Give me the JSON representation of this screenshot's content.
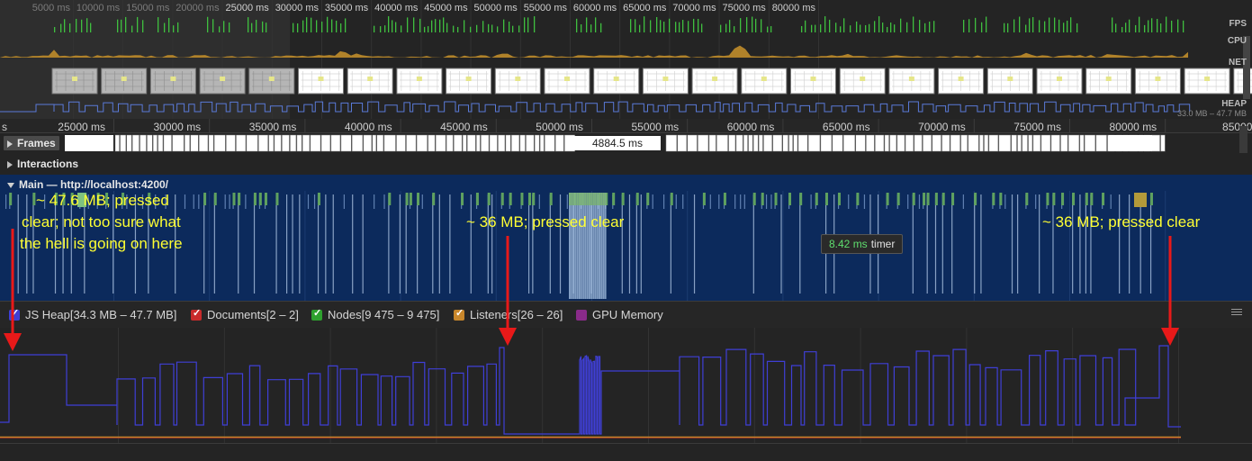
{
  "overview_ticks": [
    "5000 ms",
    "10000 ms",
    "15000 ms",
    "20000 ms",
    "25000 ms",
    "30000 ms",
    "35000 ms",
    "40000 ms",
    "45000 ms",
    "50000 ms",
    "55000 ms",
    "60000 ms",
    "65000 ms",
    "70000 ms",
    "75000 ms",
    "80000 ms"
  ],
  "overview_lanes": {
    "fps": "FPS",
    "cpu": "CPU",
    "net": "NET",
    "heap": "HEAP"
  },
  "heap_range": "33.0 MB – 47.7 MB",
  "main_ticks": [
    "25000 ms",
    "30000 ms",
    "35000 ms",
    "40000 ms",
    "45000 ms",
    "50000 ms",
    "55000 ms",
    "60000 ms",
    "65000 ms",
    "70000 ms",
    "75000 ms",
    "80000 ms",
    "85000"
  ],
  "main_tick_left_fragment": "s",
  "frames": {
    "label": "Frames",
    "duration": "4884.5 ms"
  },
  "interactions": {
    "label": "Interactions"
  },
  "main_thread": {
    "label": "Main — http://localhost:4200/"
  },
  "tooltip": {
    "duration": "8.42 ms",
    "label": "timer"
  },
  "annotations": {
    "a1_line1": "~ 47.6 MB; pressed",
    "a1_line2": "clear; not too sure what",
    "a1_line3": "the hell is going on here",
    "a2": "~ 36 MB; pressed clear",
    "a3": "~ 36 MB; pressed clear"
  },
  "legend": {
    "js_heap": "JS Heap[34.3 MB – 47.7 MB]",
    "documents": "Documents[2 – 2]",
    "nodes": "Nodes[9 475 – 9 475]",
    "listeners": "Listeners[26 – 26]",
    "gpu": "GPU Memory"
  },
  "colors": {
    "js_heap": "#3f3fd6",
    "documents": "#c92b2b",
    "nodes": "#2ea12e",
    "listeners": "#c9872b",
    "gpu": "#8a2b8a",
    "annotation": "#ffff33",
    "arrow": "#e81919",
    "main_bg": "#0c2a5c"
  }
}
